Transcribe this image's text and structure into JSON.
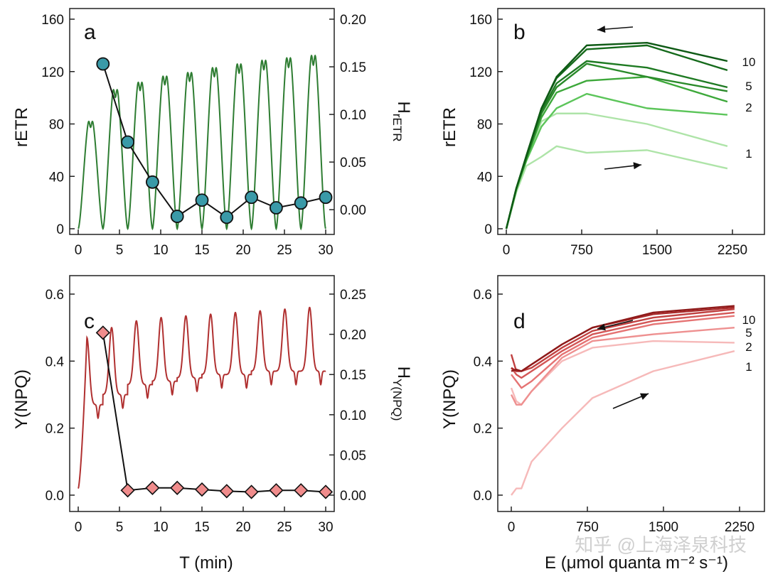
{
  "figure": {
    "x_label_left": "T (min)",
    "x_label_right": "E (μmol quanta m⁻² s⁻¹)",
    "watermark": "知乎 @上海泽泉科技"
  },
  "chart_data": [
    {
      "id": "a",
      "panel_label": "a",
      "type": "line",
      "ylabel": "rETR",
      "y2label": "HrETR",
      "xlim": [
        0,
        30
      ],
      "ylim": [
        0,
        160
      ],
      "y2lim": [
        -0.02,
        0.2
      ],
      "xticks": [
        0,
        5,
        10,
        15,
        20,
        25,
        30
      ],
      "yticks": [
        0,
        40,
        80,
        120,
        160
      ],
      "y2ticks": [
        "0.00",
        "0.05",
        "0.10",
        "0.15",
        "0.20"
      ],
      "oscillation": {
        "period_min": 3,
        "cycles": 10,
        "trough": 0,
        "peaks": [
          88,
          114,
          120,
          125,
          128,
          132,
          135,
          138,
          140,
          142
        ]
      },
      "series": [
        {
          "axis": "right",
          "color": "#3a9aa8",
          "marker": "circle",
          "x": [
            3,
            6,
            9,
            12,
            15,
            18,
            21,
            24,
            27,
            30
          ],
          "y": [
            0.153,
            0.071,
            0.029,
            -0.007,
            0.01,
            -0.008,
            0.013,
            0.002,
            0.007,
            0.013
          ]
        }
      ]
    },
    {
      "id": "b",
      "panel_label": "b",
      "type": "line",
      "ylabel": "rETR",
      "xlim": [
        0,
        2250
      ],
      "ylim": [
        0,
        160
      ],
      "xticks": [
        0,
        750,
        1500,
        2250
      ],
      "yticks": [
        0,
        40,
        80,
        120,
        160
      ],
      "curve_labels": [
        "10",
        "5",
        "2",
        "1"
      ],
      "series": [
        {
          "color": "#aee4a8",
          "x": [
            0,
            100,
            200,
            350,
            500,
            800,
            1400,
            2200
          ],
          "y": [
            0,
            28,
            48,
            55,
            63,
            58,
            60,
            46
          ]
        },
        {
          "color": "#aee4a8",
          "x": [
            0,
            100,
            200,
            350,
            500,
            800,
            1400,
            2200
          ],
          "y": [
            0,
            30,
            52,
            82,
            88,
            88,
            80,
            63
          ]
        },
        {
          "color": "#5cc55a",
          "x": [
            0,
            100,
            200,
            350,
            500,
            800,
            1400,
            2200
          ],
          "y": [
            0,
            30,
            52,
            78,
            92,
            103,
            92,
            87
          ]
        },
        {
          "color": "#3da83a",
          "x": [
            0,
            100,
            200,
            350,
            500,
            800,
            1400,
            2200
          ],
          "y": [
            0,
            30,
            53,
            85,
            104,
            113,
            116,
            97
          ]
        },
        {
          "color": "#2a8a2a",
          "x": [
            0,
            100,
            200,
            350,
            500,
            800,
            1400,
            2200
          ],
          "y": [
            0,
            31,
            54,
            88,
            108,
            126,
            116,
            105
          ]
        },
        {
          "color": "#1e7a22",
          "x": [
            0,
            100,
            200,
            350,
            500,
            800,
            1400,
            2200
          ],
          "y": [
            0,
            31,
            55,
            90,
            111,
            128,
            123,
            108
          ]
        },
        {
          "color": "#156a1b",
          "x": [
            0,
            100,
            200,
            350,
            500,
            800,
            1400,
            2200
          ],
          "y": [
            0,
            31,
            55,
            92,
            115,
            137,
            140,
            121
          ]
        },
        {
          "color": "#0e5a15",
          "x": [
            0,
            100,
            200,
            350,
            500,
            800,
            1400,
            2200
          ],
          "y": [
            0,
            31,
            56,
            92,
            116,
            140,
            142,
            128
          ]
        }
      ]
    },
    {
      "id": "c",
      "panel_label": "c",
      "type": "line",
      "ylabel": "Y(NPQ)",
      "y2label": "HY(NPQ)",
      "xlim": [
        0,
        30
      ],
      "ylim": [
        0,
        0.6
      ],
      "y2lim": [
        0,
        0.25
      ],
      "xticks": [
        0,
        5,
        10,
        15,
        20,
        25,
        30
      ],
      "yticks": [
        "0.0",
        "0.2",
        "0.4",
        "0.6"
      ],
      "y2ticks": [
        "0.00",
        "0.05",
        "0.10",
        "0.15",
        "0.20",
        "0.25"
      ],
      "oscillation": {
        "period_min": 3,
        "cycles": 10,
        "troughs": [
          0.27,
          0.3,
          0.33,
          0.34,
          0.35,
          0.36,
          0.36,
          0.37,
          0.37,
          0.37
        ],
        "peaks": [
          0.47,
          0.5,
          0.52,
          0.53,
          0.535,
          0.54,
          0.545,
          0.55,
          0.555,
          0.56
        ]
      },
      "series": [
        {
          "axis": "right",
          "color": "#f08c8c",
          "marker": "diamond",
          "x": [
            3,
            6,
            9,
            12,
            15,
            18,
            21,
            24,
            27,
            30
          ],
          "y": [
            0.202,
            0.006,
            0.009,
            0.009,
            0.007,
            0.005,
            0.004,
            0.006,
            0.006,
            0.004
          ]
        }
      ]
    },
    {
      "id": "d",
      "panel_label": "d",
      "type": "line",
      "ylabel": "Y(NPQ)",
      "xlim": [
        0,
        2250
      ],
      "ylim": [
        0,
        0.6
      ],
      "xticks": [
        0,
        750,
        1500,
        2250
      ],
      "yticks": [
        "0.0",
        "0.2",
        "0.4",
        "0.6"
      ],
      "curve_labels": [
        "10",
        "5",
        "2",
        "1"
      ],
      "series": [
        {
          "color": "#f6b9b9",
          "x": [
            0,
            50,
            100,
            200,
            500,
            800,
            1400,
            2200
          ],
          "y": [
            0.0,
            0.02,
            0.02,
            0.1,
            0.2,
            0.29,
            0.37,
            0.43
          ]
        },
        {
          "color": "#f6b9b9",
          "x": [
            0,
            50,
            100,
            200,
            500,
            800,
            1400,
            2200
          ],
          "y": [
            0.32,
            0.28,
            0.27,
            0.31,
            0.4,
            0.44,
            0.46,
            0.455
          ]
        },
        {
          "color": "#ee9090",
          "x": [
            0,
            50,
            100,
            200,
            500,
            800,
            1400,
            2200
          ],
          "y": [
            0.3,
            0.27,
            0.27,
            0.31,
            0.41,
            0.46,
            0.48,
            0.5
          ]
        },
        {
          "color": "#e57373",
          "x": [
            0,
            50,
            100,
            200,
            500,
            800,
            1400,
            2200
          ],
          "y": [
            0.36,
            0.34,
            0.32,
            0.34,
            0.42,
            0.47,
            0.51,
            0.535
          ]
        },
        {
          "color": "#d35656",
          "x": [
            0,
            50,
            100,
            200,
            500,
            800,
            1400,
            2200
          ],
          "y": [
            0.38,
            0.36,
            0.35,
            0.37,
            0.43,
            0.48,
            0.52,
            0.545
          ]
        },
        {
          "color": "#c04040",
          "x": [
            0,
            50,
            100,
            200,
            500,
            800,
            1400,
            2200
          ],
          "y": [
            0.42,
            0.37,
            0.37,
            0.38,
            0.44,
            0.49,
            0.53,
            0.555
          ]
        },
        {
          "color": "#a82a2a",
          "x": [
            0,
            50,
            100,
            200,
            500,
            800,
            1400,
            2200
          ],
          "y": [
            0.38,
            0.37,
            0.37,
            0.39,
            0.45,
            0.5,
            0.54,
            0.56
          ]
        },
        {
          "color": "#8e1a1a",
          "x": [
            0,
            50,
            100,
            200,
            500,
            800,
            1400,
            2200
          ],
          "y": [
            0.37,
            0.375,
            0.37,
            0.39,
            0.45,
            0.5,
            0.545,
            0.565
          ]
        }
      ]
    }
  ]
}
